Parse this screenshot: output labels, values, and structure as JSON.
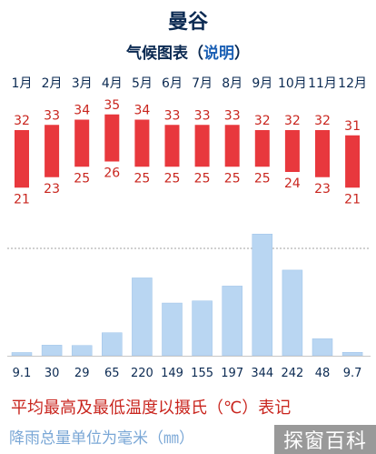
{
  "header": {
    "title": "曼谷",
    "subtitle_prefix": "气候图表",
    "subtitle_paren_open": "（",
    "subtitle_link": "说明",
    "subtitle_paren_close": "）"
  },
  "legend": {
    "temperature_note": "平均最高及最低温度以摄氏（℃）表记",
    "rainfall_note": "降雨总量单位为毫米（㎜）"
  },
  "watermark": "探窗百科",
  "colors": {
    "temp_bar": "#e8383d",
    "temp_text": "#c9261f",
    "rain_bar": "#b9d6f2",
    "rain_bar_stroke": "#9cc1e8",
    "text_dark": "#0b2a52",
    "axis": "#c7c7c7",
    "dotted_line": "#a0a0a0"
  },
  "chart_data": {
    "type": "bar",
    "categories": [
      "1月",
      "2月",
      "3月",
      "4月",
      "5月",
      "6月",
      "7月",
      "8月",
      "9月",
      "10月",
      "11月",
      "12月"
    ],
    "series": [
      {
        "name": "平均最高温度",
        "unit": "℃",
        "values": [
          32,
          33,
          34,
          35,
          34,
          33,
          33,
          33,
          32,
          32,
          32,
          31
        ]
      },
      {
        "name": "平均最低温度",
        "unit": "℃",
        "values": [
          21,
          23,
          25,
          26,
          25,
          25,
          25,
          25,
          25,
          24,
          23,
          21
        ]
      },
      {
        "name": "降雨总量",
        "unit": "mm",
        "values": [
          9.1,
          30,
          29,
          65,
          220,
          149,
          155,
          197,
          344,
          242,
          48,
          9.7
        ]
      }
    ],
    "rainfall_labels": [
      "9.1",
      "30",
      "29",
      "65",
      "220",
      "149",
      "155",
      "197",
      "344",
      "242",
      "48",
      "9.7"
    ],
    "temp_ylim": [
      20,
      36
    ],
    "rain_ylim": [
      0,
      360
    ]
  }
}
